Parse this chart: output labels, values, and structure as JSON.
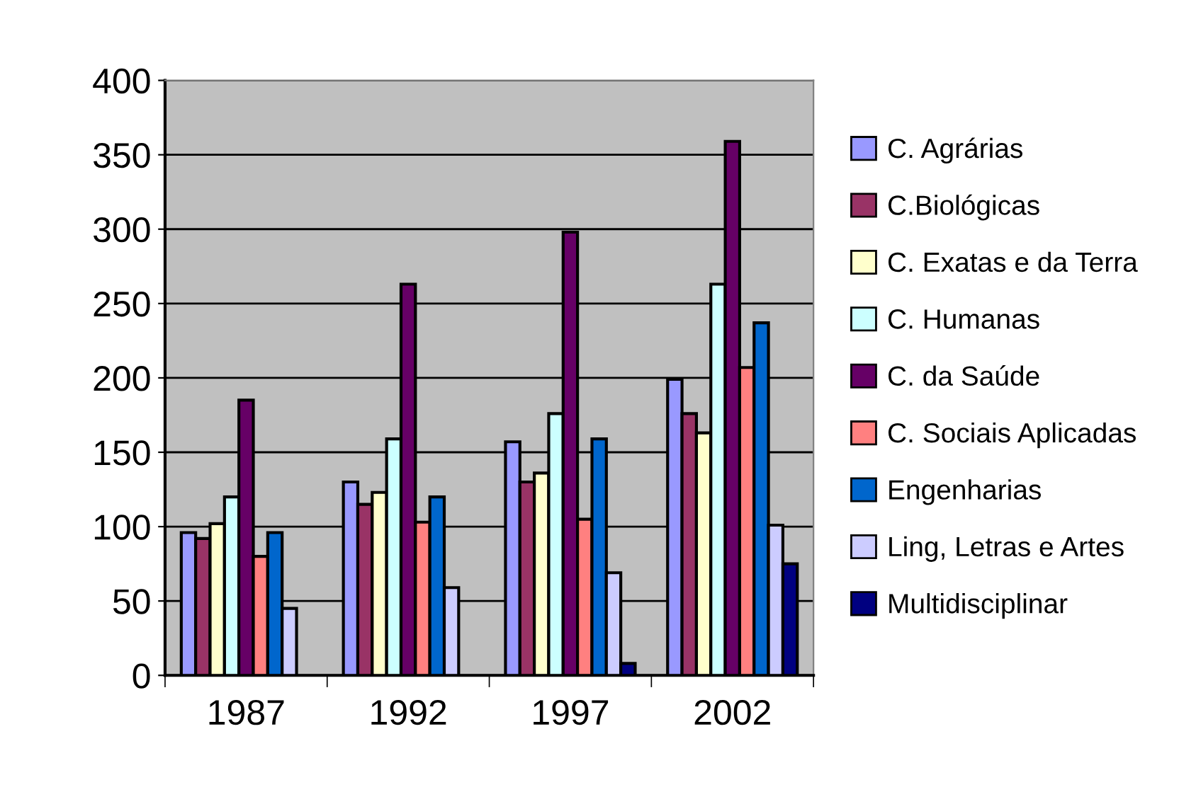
{
  "chart_data": {
    "type": "bar",
    "categories": [
      "1987",
      "1992",
      "1997",
      "2002"
    ],
    "series": [
      {
        "name": "C. Agrárias",
        "color": "#9999ff",
        "values": [
          96,
          130,
          157,
          199
        ]
      },
      {
        "name": "C.Biológicas",
        "color": "#993366",
        "values": [
          92,
          115,
          130,
          176
        ]
      },
      {
        "name": "C. Exatas e da Terra",
        "color": "#ffffcc",
        "values": [
          102,
          123,
          136,
          163
        ]
      },
      {
        "name": "C. Humanas",
        "color": "#ccffff",
        "values": [
          120,
          159,
          176,
          263
        ]
      },
      {
        "name": "C. da Saúde",
        "color": "#660066",
        "values": [
          185,
          263,
          298,
          359
        ]
      },
      {
        "name": "C. Sociais Aplicadas",
        "color": "#ff8080",
        "values": [
          80,
          103,
          105,
          207
        ]
      },
      {
        "name": "Engenharias",
        "color": "#0066cc",
        "values": [
          96,
          120,
          159,
          237
        ]
      },
      {
        "name": "Ling, Letras e Artes",
        "color": "#ccccff",
        "values": [
          45,
          59,
          69,
          101
        ]
      },
      {
        "name": "Multidisciplinar",
        "color": "#000080",
        "values": [
          null,
          null,
          8,
          75
        ]
      }
    ],
    "ylim": [
      0,
      400
    ],
    "yticks": [
      0,
      50,
      100,
      150,
      200,
      250,
      300,
      350,
      400
    ],
    "grid": "y",
    "legend": "right"
  }
}
